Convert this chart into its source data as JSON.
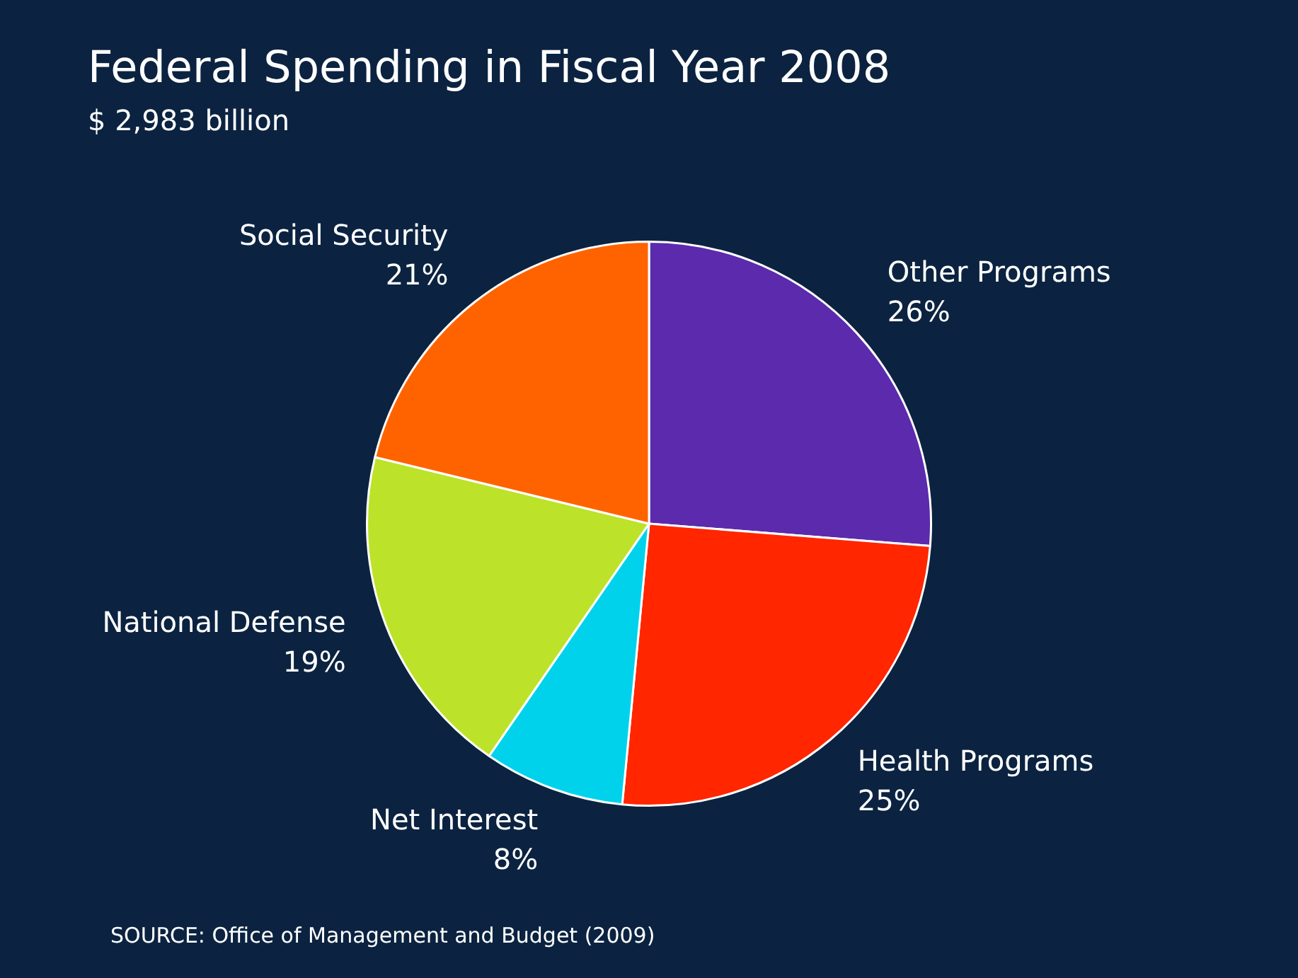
{
  "chart_data": {
    "type": "pie",
    "title": "Federal Spending in Fiscal Year 2008",
    "subtitle": "$ 2,983 billion",
    "categories": [
      "Other Programs",
      "Health Programs",
      "Net Interest",
      "National Defense",
      "Social Security"
    ],
    "values": [
      26,
      25,
      8,
      19,
      21
    ],
    "colors": [
      "#5b2aad",
      "#ff2600",
      "#00d2ec",
      "#bde22a",
      "#ff6300"
    ],
    "value_labels": [
      "26%",
      "25%",
      "8%",
      "19%",
      "21%"
    ],
    "legend": false,
    "annotations": [
      "SOURCE: Office of Management and Budget (2009)"
    ]
  }
}
